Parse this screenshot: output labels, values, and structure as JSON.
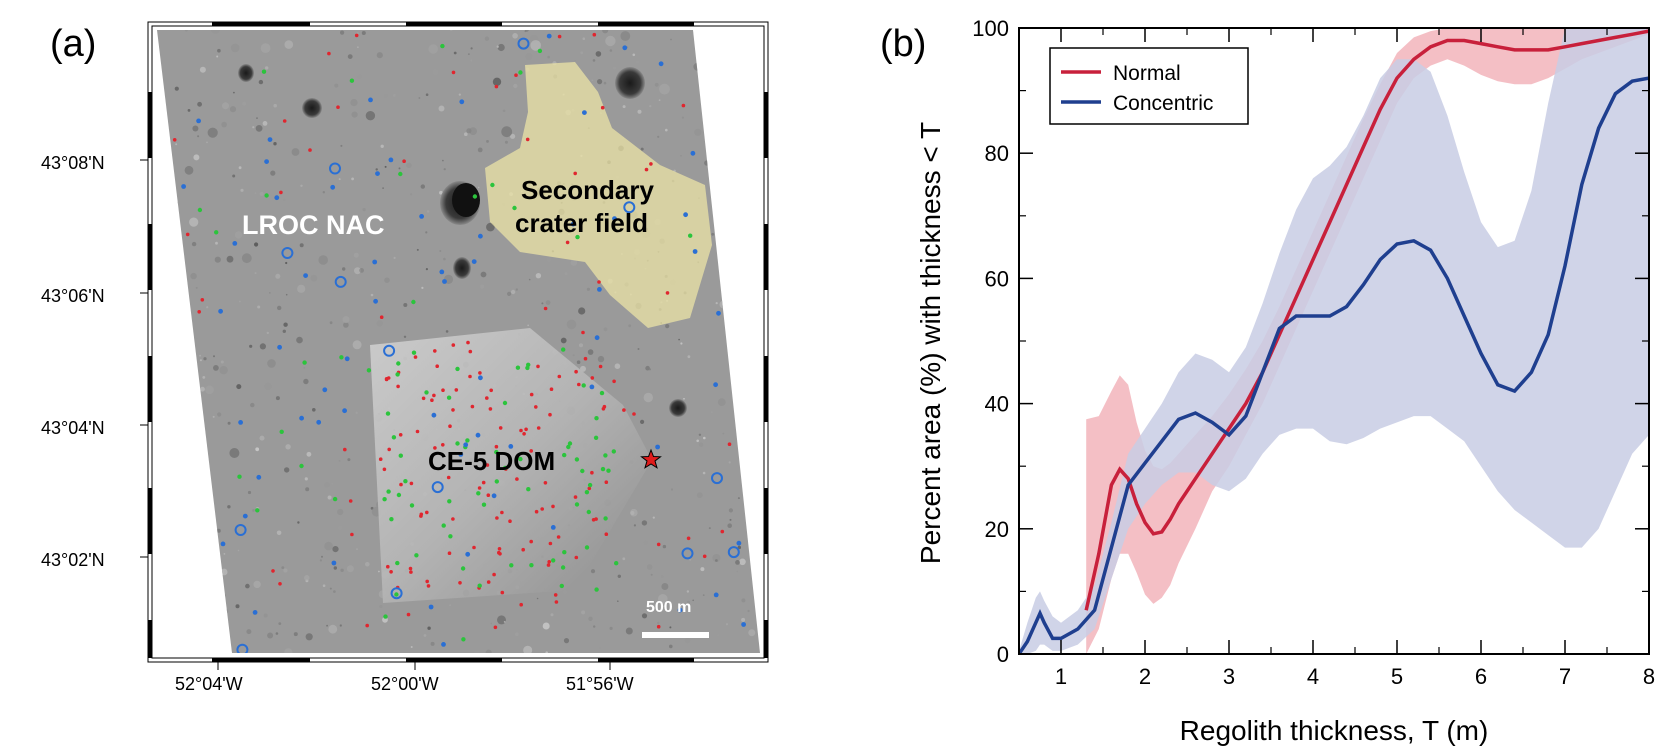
{
  "panel_a": {
    "label": "(a)",
    "lat_ticks": [
      "43°08'N",
      "43°06'N",
      "43°04'N",
      "43°02'N"
    ],
    "lon_ticks": [
      "52°04'W",
      "52°00'W",
      "51°56'W"
    ],
    "lroc_label": "LROC NAC",
    "secondary_label_1": "Secondary",
    "secondary_label_2": "crater field",
    "dom_label": "CE-5 DOM",
    "scale_label": "500 m",
    "colors": {
      "normal_marker": "#e0262f",
      "concentric_marker": "#2a6fd4",
      "other_marker": "#2bc43c",
      "secondary_fill": "#efe6a6",
      "landing_star": "#e01b1b"
    }
  },
  "chart_data": {
    "type": "line",
    "panel_label": "(b)",
    "title": "",
    "xlabel": "Regolith thickness, T (m)",
    "ylabel": "Percent area (%) with thickness < T",
    "xlim": [
      0.5,
      8
    ],
    "ylim": [
      0,
      100
    ],
    "xticks": [
      1,
      2,
      3,
      4,
      5,
      6,
      7,
      8
    ],
    "yticks": [
      0,
      20,
      40,
      60,
      80,
      100
    ],
    "legend_position": "top-left",
    "series": [
      {
        "name": "Normal",
        "color": "#c8203b",
        "band_color": "#f0a9b2",
        "x": [
          1.3,
          1.45,
          1.6,
          1.7,
          1.8,
          1.9,
          2.0,
          2.1,
          2.2,
          2.3,
          2.4,
          2.6,
          2.8,
          3.0,
          3.2,
          3.4,
          3.6,
          3.8,
          4.0,
          4.2,
          4.4,
          4.6,
          4.8,
          5.0,
          5.2,
          5.4,
          5.6,
          5.8,
          6.0,
          6.2,
          6.4,
          6.6,
          6.8,
          7.0,
          7.2,
          7.4,
          7.6,
          7.8,
          8.0
        ],
        "y": [
          7,
          16,
          27,
          29.5,
          28,
          24,
          21,
          19.2,
          19.5,
          21.5,
          24,
          28,
          32,
          36,
          40,
          45,
          51,
          57,
          63,
          69,
          75,
          81,
          87,
          92,
          95,
          97,
          98,
          98,
          97.5,
          97,
          96.5,
          96.5,
          96.5,
          97,
          97.5,
          98,
          98.5,
          99,
          99.5
        ],
        "y_low": [
          0,
          4,
          12,
          16,
          16,
          13,
          9.5,
          8,
          9,
          11,
          14.5,
          20,
          26,
          30,
          35,
          40,
          46,
          52,
          58,
          64,
          70,
          76,
          82,
          88,
          92,
          94,
          95,
          94,
          92.5,
          91.5,
          91,
          91,
          92,
          93.5,
          95,
          96,
          97,
          98,
          99
        ],
        "y_high": [
          37.5,
          38,
          42,
          44.5,
          43,
          37,
          32.5,
          30,
          29.5,
          30.5,
          32,
          35,
          38,
          41.5,
          45.5,
          50,
          55.5,
          61.5,
          67.5,
          73.5,
          79.5,
          85.5,
          91,
          96,
          98.5,
          99.5,
          100,
          100,
          100,
          100,
          100,
          100,
          100,
          100,
          100,
          100,
          100,
          100,
          100
        ]
      },
      {
        "name": "Concentric",
        "color": "#1f3f8f",
        "band_color": "#c8cde4",
        "x": [
          0.5,
          0.6,
          0.7,
          0.75,
          0.8,
          0.9,
          1.0,
          1.2,
          1.4,
          1.6,
          1.8,
          2.0,
          2.2,
          2.4,
          2.6,
          2.8,
          3.0,
          3.2,
          3.4,
          3.6,
          3.8,
          4.0,
          4.2,
          4.4,
          4.6,
          4.8,
          5.0,
          5.2,
          5.4,
          5.6,
          5.8,
          6.0,
          6.2,
          6.4,
          6.6,
          6.8,
          7.0,
          7.2,
          7.4,
          7.6,
          7.8,
          8.0
        ],
        "y": [
          0,
          2,
          5,
          6.5,
          5,
          2.5,
          2.5,
          4,
          7,
          17,
          27,
          30.5,
          34,
          37.5,
          38.5,
          37,
          35,
          38,
          45,
          52,
          54,
          54,
          54,
          55.5,
          59,
          63,
          65.5,
          66,
          64.5,
          60,
          54,
          48,
          43,
          42,
          45,
          51,
          62,
          75,
          84,
          89.5,
          91.5,
          92
        ],
        "y_low": [
          0,
          0,
          0.5,
          1.5,
          1.5,
          0.5,
          0.5,
          1.5,
          4,
          12,
          20,
          24,
          27,
          29,
          29,
          27,
          26,
          28,
          32,
          35,
          36,
          36,
          34,
          33.5,
          34.5,
          36,
          37,
          38,
          38,
          36,
          34,
          30,
          26,
          23,
          21,
          19,
          17,
          17,
          20,
          26,
          32,
          35
        ],
        "y_high": [
          0.5,
          5,
          9,
          10,
          8.5,
          6,
          5,
          7,
          11,
          21,
          32,
          36,
          40,
          45,
          48,
          47,
          45,
          49,
          56,
          64,
          71,
          76,
          78,
          81,
          86,
          92,
          95,
          95,
          93,
          86,
          77,
          69,
          65,
          66,
          74,
          88,
          100,
          100,
          100,
          100,
          100,
          100
        ]
      }
    ]
  }
}
